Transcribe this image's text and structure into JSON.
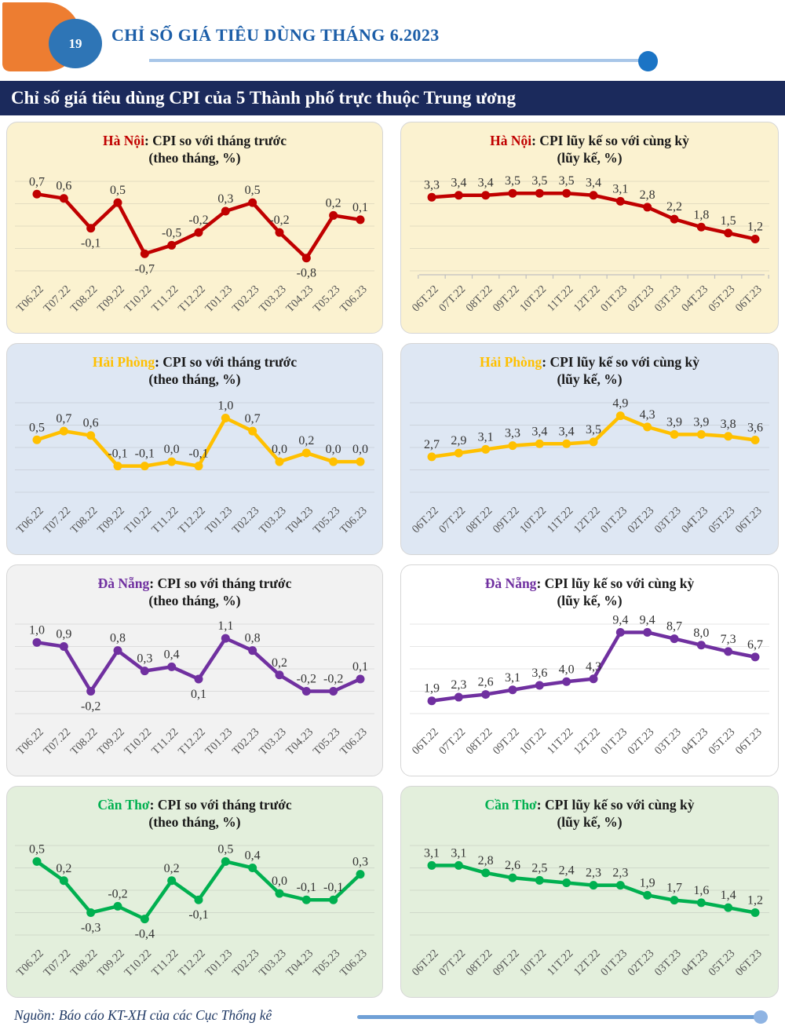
{
  "page": {
    "page_number": "19",
    "header_title": "CHỈ SỐ GIÁ TIÊU DÙNG THÁNG 6.2023",
    "banner_title": "Chỉ số giá tiêu dùng CPI của 5 Thành phố trực thuộc Trung ương",
    "footer_source": "Nguồn: Báo cáo KT-XH của các Cục Thống kê"
  },
  "colors": {
    "orange_blob": "#ED7D31",
    "page_circle": "#2E75B6",
    "header_title": "#1C5EA8",
    "header_rule": "#A8C6E8",
    "header_dot": "#1B74C5",
    "banner_bg": "#1B2A5C",
    "footer_text": "#1F3864",
    "footer_rule": "#6FA0D6",
    "footer_dot": "#8FB4E3",
    "grid_line": "#8c8c8c",
    "value_label": "#333333",
    "axis_label": "#555555"
  },
  "chart_data": [
    {
      "type": "line",
      "slug": "ha-noi-monthly",
      "city": "Hà Nội",
      "city_color": "#C00000",
      "title_rest": ": CPI so với tháng trước",
      "subtitle": "(theo tháng, %)",
      "line_color": "#C00000",
      "panel_bg": "#FBF2D0",
      "categories": [
        "T06.22",
        "T07.22",
        "T08.22",
        "T09.22",
        "T10.22",
        "T11.22",
        "T12.22",
        "T01.23",
        "T02.23",
        "T03.23",
        "T04.23",
        "T05.23",
        "T06.23"
      ],
      "values": [
        0.7,
        0.6,
        -0.1,
        0.5,
        -0.7,
        -0.5,
        -0.2,
        0.3,
        0.5,
        -0.2,
        -0.8,
        0.2,
        0.1
      ],
      "ylim": [
        -1.1,
        1.0
      ],
      "grid": true,
      "axis_ticks": false,
      "label_below_indices": [
        2,
        4,
        10
      ]
    },
    {
      "type": "line",
      "slug": "ha-noi-cumulative",
      "city": "Hà Nội",
      "city_color": "#C00000",
      "title_rest": ": CPI lũy kế so với cùng kỳ",
      "subtitle": "(lũy kế, %)",
      "line_color": "#C00000",
      "panel_bg": "#FBF2D0",
      "categories": [
        "06T.22",
        "07T.22",
        "08T.22",
        "09T.22",
        "10T.22",
        "11T.22",
        "12T.22",
        "01T.23",
        "02T.23",
        "03T.23",
        "04T.23",
        "05T.23",
        "06T.23"
      ],
      "values": [
        3.3,
        3.4,
        3.4,
        3.5,
        3.5,
        3.5,
        3.4,
        3.1,
        2.8,
        2.2,
        1.8,
        1.5,
        1.2
      ],
      "ylim": [
        -0.4,
        4.1
      ],
      "grid": true,
      "axis_ticks": true,
      "label_below_indices": []
    },
    {
      "type": "line",
      "slug": "hai-phong-monthly",
      "city": "Hải Phòng",
      "city_color": "#FFC000",
      "title_rest": ": CPI so với tháng trước",
      "subtitle": "(theo tháng, %)",
      "line_color": "#FFC000",
      "panel_bg": "#DEE7F3",
      "categories": [
        "T06.22",
        "T07.22",
        "T08.22",
        "T09.22",
        "T10.22",
        "T11.22",
        "T12.22",
        "T01.23",
        "T02.23",
        "T03.23",
        "T04.23",
        "T05.23",
        "T06.23"
      ],
      "values": [
        0.5,
        0.7,
        0.6,
        -0.1,
        -0.1,
        0.0,
        -0.1,
        1.0,
        0.7,
        0.0,
        0.2,
        0.0,
        0.0
      ],
      "ylim": [
        -0.7,
        1.35
      ],
      "grid": true,
      "axis_ticks": false,
      "label_below_indices": []
    },
    {
      "type": "line",
      "slug": "hai-phong-cumulative",
      "city": "Hải Phòng",
      "city_color": "#FFC000",
      "title_rest": ": CPI lũy kế so với cùng kỳ",
      "subtitle": "(lũy kế, %)",
      "line_color": "#FFC000",
      "panel_bg": "#DEE7F3",
      "categories": [
        "06T.22",
        "07T.22",
        "08T.22",
        "09T.22",
        "10T.22",
        "11T.22",
        "12T.22",
        "01T.23",
        "02T.23",
        "03T.23",
        "04T.23",
        "05T.23",
        "06T.23"
      ],
      "values": [
        2.7,
        2.9,
        3.1,
        3.3,
        3.4,
        3.4,
        3.5,
        4.9,
        4.3,
        3.9,
        3.9,
        3.8,
        3.6
      ],
      "ylim": [
        0.8,
        5.6
      ],
      "grid": true,
      "axis_ticks": false,
      "label_below_indices": []
    },
    {
      "type": "line",
      "slug": "da-nang-monthly",
      "city": "Đà Nẵng",
      "city_color": "#7030A0",
      "title_rest": ": CPI so với tháng trước",
      "subtitle": "(theo tháng, %)",
      "line_color": "#7030A0",
      "panel_bg": "#F2F2F2",
      "categories": [
        "T06.22",
        "T07.22",
        "T08.22",
        "T09.22",
        "T10.22",
        "T11.22",
        "T12.22",
        "T01.23",
        "T02.23",
        "T03.23",
        "T04.23",
        "T05.23",
        "T06.23"
      ],
      "values": [
        1.0,
        0.9,
        -0.2,
        0.8,
        0.3,
        0.4,
        0.1,
        1.1,
        0.8,
        0.2,
        -0.2,
        -0.2,
        0.1
      ],
      "ylim": [
        -0.75,
        1.45
      ],
      "grid": true,
      "axis_ticks": false,
      "label_below_indices": [
        2,
        6
      ]
    },
    {
      "type": "line",
      "slug": "da-nang-cumulative",
      "city": "Đà Nẵng",
      "city_color": "#7030A0",
      "title_rest": ": CPI lũy kế so với cùng kỳ",
      "subtitle": "(lũy kế, %)",
      "line_color": "#7030A0",
      "panel_bg": "#FFFFFF",
      "categories": [
        "06T.22",
        "07T.22",
        "08T.22",
        "09T.22",
        "10T.22",
        "11T.22",
        "12T.22",
        "01T.23",
        "02T.23",
        "03T.23",
        "04T.23",
        "05T.23",
        "06T.23"
      ],
      "values": [
        1.9,
        2.3,
        2.6,
        3.1,
        3.6,
        4.0,
        4.3,
        9.4,
        9.4,
        8.7,
        8.0,
        7.3,
        6.7
      ],
      "ylim": [
        0.5,
        10.3
      ],
      "grid": true,
      "axis_ticks": false,
      "label_below_indices": []
    },
    {
      "type": "line",
      "slug": "can-tho-monthly",
      "city": "Cần Thơ",
      "city_color": "#00B050",
      "title_rest": ": CPI so với tháng trước",
      "subtitle": "(theo tháng, %)",
      "line_color": "#00B050",
      "panel_bg": "#E3EFDC",
      "categories": [
        "T06.22",
        "T07.22",
        "T08.22",
        "T09.22",
        "T10.22",
        "T11.22",
        "T12.22",
        "T01.23",
        "T02.23",
        "T03.23",
        "T04.23",
        "T05.23",
        "T06.23"
      ],
      "values": [
        0.5,
        0.2,
        -0.3,
        -0.2,
        -0.4,
        0.2,
        -0.1,
        0.5,
        0.4,
        0.0,
        -0.1,
        -0.1,
        0.3
      ],
      "ylim": [
        -0.65,
        0.75
      ],
      "grid": true,
      "axis_ticks": false,
      "label_below_indices": [
        2,
        4,
        6
      ]
    },
    {
      "type": "line",
      "slug": "can-tho-cumulative",
      "city": "Cần Thơ",
      "city_color": "#00B050",
      "title_rest": ": CPI lũy kế so với cùng kỳ",
      "subtitle": "(lũy kế, %)",
      "line_color": "#00B050",
      "panel_bg": "#E3EFDC",
      "categories": [
        "06T.22",
        "07T.22",
        "08T.22",
        "09T.22",
        "10T.22",
        "11T.22",
        "12T.22",
        "01T.23",
        "02T.23",
        "03T.23",
        "04T.23",
        "05T.23",
        "06T.23"
      ],
      "values": [
        3.1,
        3.1,
        2.8,
        2.6,
        2.5,
        2.4,
        2.3,
        2.3,
        1.9,
        1.7,
        1.6,
        1.4,
        1.2
      ],
      "ylim": [
        0.3,
        3.9
      ],
      "grid": true,
      "axis_ticks": false,
      "label_below_indices": []
    }
  ]
}
